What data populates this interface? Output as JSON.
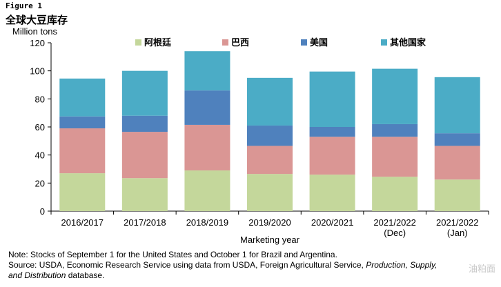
{
  "figure_label": "Figure 1",
  "figure_title": "全球大豆库存",
  "notes": {
    "line1": "Note: Stocks of September 1 for the United States and October 1 for Brazil and Argentina.",
    "line2_prefix": "Source: USDA, Economic Research Service using data from USDA, Foreign Agricultural Service, ",
    "line2_italic": "Production, Supply,",
    "line3_italic": "and Distribution",
    "line3_suffix": " database."
  },
  "watermark": "油粕面",
  "colors": {
    "argentina": "#c4d79b",
    "brazil": "#da9694",
    "us": "#4f81bd",
    "others": "#4bacc6",
    "axis": "#000000"
  },
  "chart_data": {
    "type": "bar",
    "stacked": true,
    "ylabel": "Million tons",
    "xlabel": "Marketing year",
    "ylim": [
      0,
      120
    ],
    "yticks": [
      0,
      20,
      40,
      60,
      80,
      100,
      120
    ],
    "grid": false,
    "legend_position": "top",
    "categories": [
      [
        "2016/2017"
      ],
      [
        "2017/2018"
      ],
      [
        "2018/2019"
      ],
      [
        "2019/2020"
      ],
      [
        "2020/2021"
      ],
      [
        "2021/2022",
        "(Dec)"
      ],
      [
        "2021/2022",
        "(Jan)"
      ]
    ],
    "series": [
      {
        "name": "阿根廷",
        "color_key": "argentina",
        "values": [
          27,
          23.5,
          29,
          26.5,
          26,
          24.5,
          22.5
        ]
      },
      {
        "name": "巴西",
        "color_key": "brazil",
        "values": [
          32,
          33,
          32.5,
          20,
          27,
          28.5,
          24
        ]
      },
      {
        "name": "美国",
        "color_key": "us",
        "values": [
          8.5,
          11.5,
          24.5,
          14.5,
          7,
          9,
          9
        ]
      },
      {
        "name": "其他国家",
        "color_key": "others",
        "values": [
          27,
          32,
          28,
          34,
          39.5,
          39.5,
          40
        ]
      }
    ]
  }
}
